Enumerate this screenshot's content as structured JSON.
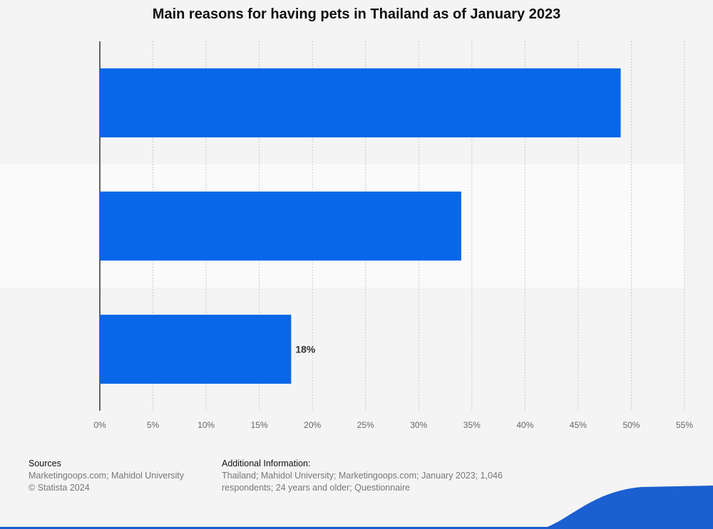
{
  "chart_data": {
    "type": "bar",
    "orientation": "horizontal",
    "title": "Main reasons for having pets in Thailand as of January 2023",
    "categories": [
      "",
      "",
      ""
    ],
    "values": [
      49,
      34,
      18
    ],
    "data_labels": [
      "",
      "",
      "18%"
    ],
    "xlim": [
      0,
      55
    ],
    "x_ticks": [
      0,
      5,
      10,
      15,
      20,
      25,
      30,
      35,
      40,
      45,
      50,
      55
    ],
    "x_tick_labels": [
      "0%",
      "5%",
      "10%",
      "15%",
      "20%",
      "25%",
      "30%",
      "35%",
      "40%",
      "45%",
      "50%",
      "55%"
    ],
    "grid": true,
    "bar_color": "#0866e8"
  },
  "footer": {
    "sources_heading": "Sources",
    "sources_text": "Marketingoops.com; Mahidol University",
    "copyright": "© Statista 2024",
    "info_heading": "Additional Information:",
    "info_text": "Thailand; Mahidol University; Marketingoops.com; January 2023; 1,046 respondents; 24 years and older; Questionnaire"
  },
  "colors": {
    "accent": "#0866e8",
    "background": "#f4f4f4",
    "band": "#fafafa",
    "wave": "#1b5fd0"
  }
}
